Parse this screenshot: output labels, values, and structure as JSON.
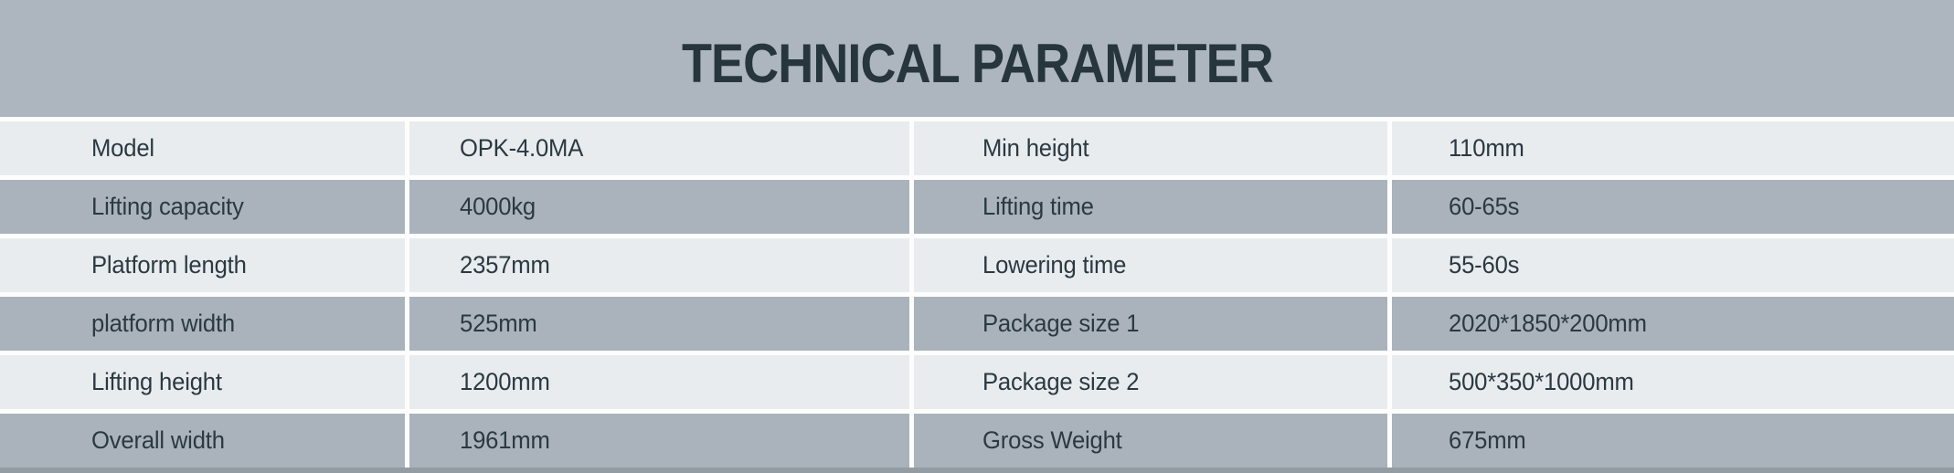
{
  "title": "TECHNICAL PARAMETER",
  "colors": {
    "header_bg": "#adb6be",
    "row_light": "#e8ecee",
    "row_dark": "#aab3bb",
    "separator": "#fdfdfd",
    "text": "#2b3941",
    "title_text": "#27353d",
    "bottom_edge": "#949ca3"
  },
  "table": {
    "rows": [
      {
        "left_label": "Model",
        "left_value": "OPK-4.0MA",
        "right_label": "Min height",
        "right_value": "110mm"
      },
      {
        "left_label": "Lifting capacity",
        "left_value": "4000kg",
        "right_label": "Lifting time",
        "right_value": "60-65s"
      },
      {
        "left_label": "Platform length",
        "left_value": "2357mm",
        "right_label": "Lowering time",
        "right_value": "55-60s"
      },
      {
        "left_label": "platform width",
        "left_value": "525mm",
        "right_label": "Package size 1",
        "right_value": "2020*1850*200mm"
      },
      {
        "left_label": "Lifting height",
        "left_value": "1200mm",
        "right_label": "Package size 2",
        "right_value": "500*350*1000mm"
      },
      {
        "left_label": "Overall width",
        "left_value": "1961mm",
        "right_label": "Gross Weight",
        "right_value": "675mm"
      }
    ]
  }
}
